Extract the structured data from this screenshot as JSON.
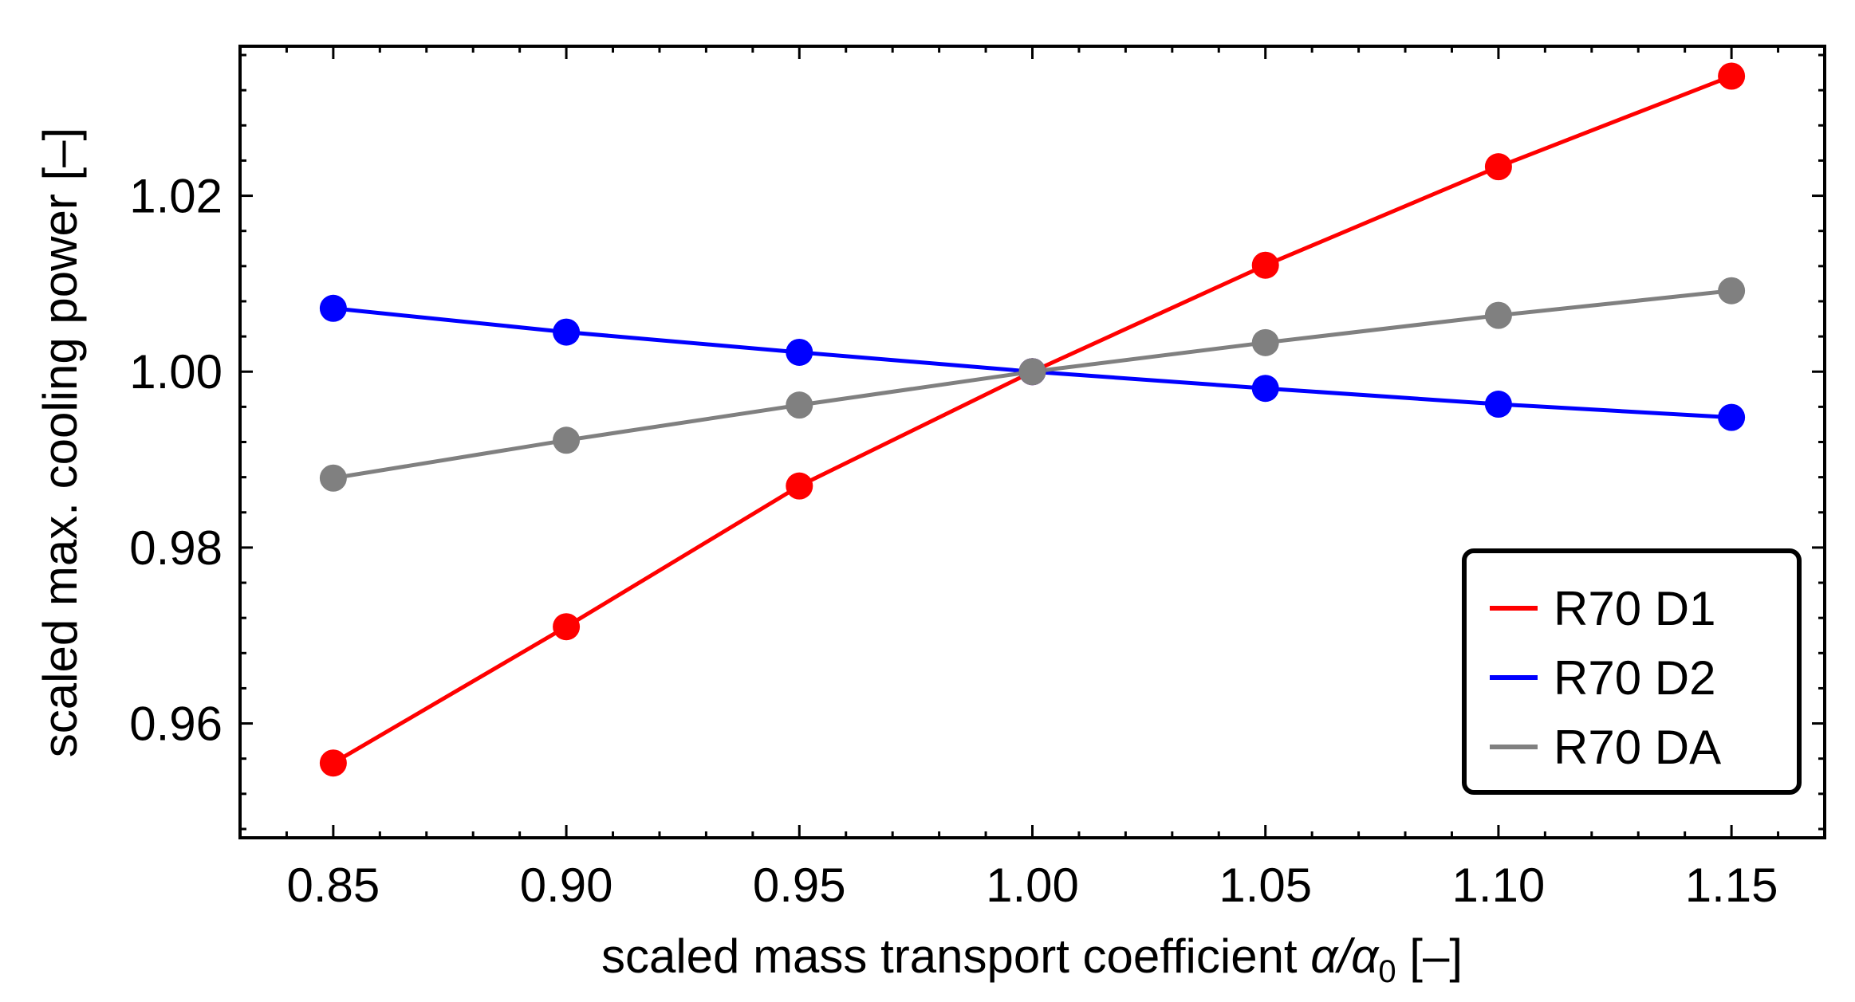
{
  "chart_data": {
    "type": "line",
    "title": "",
    "xlabel_prefix": "scaled mass transport coefficient ",
    "xlabel_symbol": "α/α",
    "xlabel_subscript": "0",
    "xlabel_suffix": " [–]",
    "ylabel": "scaled max. cooling power [–]",
    "xlim": [
      0.83,
      1.17
    ],
    "ylim": [
      0.947,
      1.037
    ],
    "x_ticks": [
      0.85,
      0.9,
      0.95,
      1.0,
      1.05,
      1.1,
      1.15
    ],
    "x_tick_labels": [
      "0.85",
      "0.90",
      "0.95",
      "1.00",
      "1.05",
      "1.10",
      "1.15"
    ],
    "y_ticks": [
      0.96,
      0.98,
      1.0,
      1.02
    ],
    "y_tick_labels": [
      "0.96",
      "0.98",
      "1.00",
      "1.02"
    ],
    "x": [
      0.85,
      0.9,
      0.95,
      1.0,
      1.05,
      1.1,
      1.15
    ],
    "series": [
      {
        "name": "R70 D1",
        "color": "#ff0000",
        "values": [
          0.9555,
          0.971,
          0.987,
          1.0,
          1.0121,
          1.0233,
          1.0336
        ]
      },
      {
        "name": "R70 D2",
        "color": "#0000ff",
        "values": [
          1.0072,
          1.0045,
          1.0022,
          1.0,
          0.9981,
          0.9963,
          0.9948
        ]
      },
      {
        "name": "R70 DA",
        "color": "#808080",
        "values": [
          0.9879,
          0.9922,
          0.9962,
          1.0,
          1.0033,
          1.0064,
          1.0092
        ]
      }
    ],
    "legend_position": "bottom-right",
    "grid": false
  }
}
